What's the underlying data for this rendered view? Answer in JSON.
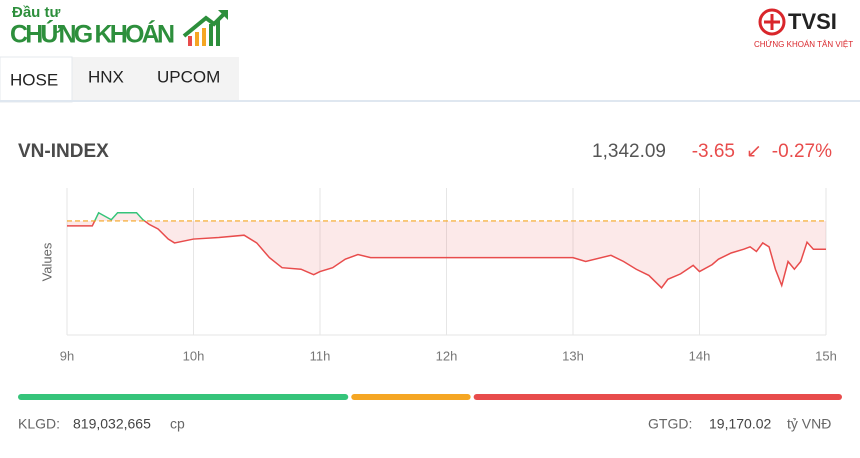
{
  "header": {
    "logo_top": "Đầu tư",
    "logo_main": "CHỨNG KHOÁN",
    "brand": "TVSI",
    "brand_sub": "CHỨNG KHOÁN TÂN VIỆT"
  },
  "tabs": [
    "HOSE",
    "HNX",
    "UPCOM"
  ],
  "index": {
    "name": "VN-INDEX",
    "value": "1,342.09",
    "change": "-3.65",
    "arrow": "↙",
    "percent": "-0.27%"
  },
  "chart_data": {
    "type": "line",
    "ylabel": "Values",
    "x": [
      9.0,
      9.2,
      9.25,
      9.35,
      9.4,
      9.55,
      9.6,
      9.65,
      9.72,
      9.8,
      9.85,
      10.0,
      10.2,
      10.4,
      10.5,
      10.6,
      10.7,
      10.85,
      10.95,
      11.0,
      11.1,
      11.2,
      11.3,
      11.4,
      11.5,
      13.0,
      13.1,
      13.3,
      13.4,
      13.5,
      13.6,
      13.7,
      13.75,
      13.85,
      13.95,
      14.0,
      14.1,
      14.15,
      14.25,
      14.35,
      14.4,
      14.45,
      14.5,
      14.55,
      14.6,
      14.65,
      14.7,
      14.75,
      14.8,
      14.85,
      14.9,
      15.0
    ],
    "series": [
      {
        "color": "#e84c4c",
        "up_color": "#35c47a",
        "values": [
          1345.1,
          1345.1,
          1346.8,
          1345.9,
          1346.8,
          1346.8,
          1345.9,
          1345.3,
          1344.7,
          1343.4,
          1342.9,
          1343.4,
          1343.6,
          1343.9,
          1342.9,
          1341.0,
          1339.7,
          1339.5,
          1338.8,
          1339.2,
          1339.7,
          1340.8,
          1341.4,
          1341.0,
          1341.0,
          1341.0,
          1340.5,
          1341.3,
          1340.5,
          1339.5,
          1338.7,
          1337.1,
          1338.2,
          1338.9,
          1340.0,
          1339.2,
          1340.1,
          1340.8,
          1341.6,
          1342.09,
          1342.4,
          1341.8,
          1342.9,
          1342.4,
          1339.5,
          1337.4,
          1340.5,
          1339.5,
          1340.5,
          1343.0,
          1342.09,
          1342.09
        ]
      }
    ],
    "reference_value": 1345.74,
    "reference_color": "#f5a623",
    "xlim": [
      9,
      15
    ],
    "ylim": [
      1331,
      1350
    ],
    "xticks": [
      {
        "value": 9,
        "label": "9h"
      },
      {
        "value": 10,
        "label": "10h"
      },
      {
        "value": 11,
        "label": "11h"
      },
      {
        "value": 12,
        "label": "12h"
      },
      {
        "value": 13,
        "label": "13h"
      },
      {
        "value": 14,
        "label": "14h"
      },
      {
        "value": 15,
        "label": "15h"
      }
    ],
    "grid": true
  },
  "breadth": {
    "values": [
      130,
      47,
      145
    ],
    "colors": [
      "#35c47a",
      "#f5a623",
      "#e84c4c"
    ]
  },
  "footer": {
    "volume_label": "KLGD:",
    "volume": "819,032,665",
    "volume_unit": "cp",
    "value_label": "GTGD:",
    "value": "19,170.02",
    "value_unit": "tỷ VNĐ"
  }
}
